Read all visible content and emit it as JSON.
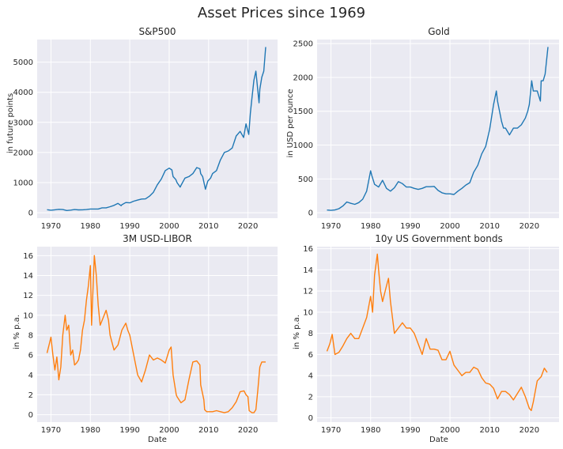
{
  "figure": {
    "title": "Asset Prices since 1969"
  },
  "colors": {
    "blue": "#1f77b4",
    "orange": "#ff7f0e",
    "panel": "#eaeaf2"
  },
  "chart_data": [
    {
      "type": "line",
      "title": "S&P500",
      "xlabel": "",
      "ylabel": "in future points",
      "xlim": [
        1966.5,
        2027.5
      ],
      "ylim": [
        -180,
        5750
      ],
      "xticks": [
        1970,
        1980,
        1990,
        2000,
        2010,
        2020
      ],
      "yticks": [
        0,
        1000,
        2000,
        3000,
        4000,
        5000
      ],
      "grid": true,
      "series": [
        {
          "color": "#1f77b4",
          "x": [
            1969,
            1970,
            1971,
            1972,
            1973,
            1974,
            1975,
            1976,
            1977,
            1978,
            1979,
            1980,
            1981,
            1982,
            1983,
            1984,
            1985,
            1986,
            1987,
            1987.8,
            1988,
            1989,
            1990,
            1991,
            1992,
            1993,
            1994,
            1995,
            1996,
            1997,
            1998,
            1999,
            2000,
            2000.7,
            2001,
            2001.7,
            2002,
            2002.8,
            2003,
            2004,
            2005,
            2006,
            2007,
            2007.8,
            2008,
            2008.5,
            2009.2,
            2009.8,
            2010.5,
            2011,
            2012,
            2013,
            2014,
            2015,
            2016,
            2017,
            2018,
            2018.9,
            2019.5,
            2020.2,
            2020.6,
            2021,
            2021.5,
            2022,
            2022.8,
            2023,
            2023.5,
            2024,
            2024.5
          ],
          "y": [
            100,
            85,
            98,
            115,
            105,
            75,
            88,
            105,
            95,
            98,
            105,
            125,
            125,
            125,
            165,
            165,
            200,
            245,
            310,
            235,
            265,
            340,
            330,
            385,
            420,
            455,
            460,
            550,
            680,
            930,
            1120,
            1400,
            1480,
            1420,
            1200,
            1100,
            1000,
            850,
            910,
            1150,
            1200,
            1300,
            1500,
            1460,
            1300,
            1200,
            780,
            1050,
            1150,
            1300,
            1400,
            1750,
            2000,
            2050,
            2150,
            2550,
            2700,
            2500,
            2950,
            2600,
            3300,
            3800,
            4400,
            4700,
            3650,
            4100,
            4500,
            4700,
            5500
          ]
        }
      ]
    },
    {
      "type": "line",
      "title": "Gold",
      "xlabel": "",
      "ylabel": "in USD per ounce",
      "xlim": [
        1966.5,
        2027.5
      ],
      "ylim": [
        -80,
        2560
      ],
      "xticks": [
        1970,
        1980,
        1990,
        2000,
        2010,
        2020
      ],
      "yticks": [
        0,
        500,
        1000,
        1500,
        2000,
        2500
      ],
      "grid": true,
      "series": [
        {
          "color": "#1f77b4",
          "x": [
            1969,
            1970,
            1971,
            1972,
            1973,
            1974,
            1975,
            1976,
            1977,
            1978,
            1979,
            1980,
            1980.3,
            1981,
            1982,
            1983,
            1984,
            1985,
            1986,
            1987,
            1988,
            1989,
            1990,
            1991,
            1992,
            1993,
            1994,
            1995,
            1996,
            1997,
            1998,
            1999,
            2000,
            2001,
            2002,
            2003,
            2004,
            2005,
            2006,
            2007,
            2008,
            2009,
            2010,
            2011,
            2011.7,
            2012,
            2013,
            2013.5,
            2014,
            2015,
            2016,
            2017,
            2018,
            2019,
            2019.6,
            2020,
            2020.6,
            2021,
            2022,
            2022.8,
            2023,
            2023.5,
            2024,
            2024.7
          ],
          "y": [
            40,
            36,
            42,
            60,
            100,
            160,
            140,
            125,
            150,
            200,
            320,
            620,
            550,
            420,
            380,
            480,
            360,
            320,
            370,
            460,
            430,
            380,
            380,
            360,
            345,
            360,
            385,
            385,
            390,
            330,
            295,
            280,
            280,
            270,
            320,
            360,
            410,
            445,
            600,
            700,
            870,
            980,
            1230,
            1600,
            1800,
            1650,
            1350,
            1250,
            1250,
            1150,
            1250,
            1250,
            1300,
            1400,
            1500,
            1600,
            1950,
            1800,
            1800,
            1650,
            1950,
            1950,
            2050,
            2450
          ]
        }
      ]
    },
    {
      "type": "line",
      "title": "3M USD-LIBOR",
      "xlabel": "Date",
      "ylabel": "in % p.a.",
      "xlim": [
        1966.5,
        2027.5
      ],
      "ylim": [
        -0.75,
        16.9
      ],
      "xticks": [
        1970,
        1980,
        1990,
        2000,
        2010,
        2020
      ],
      "yticks": [
        0,
        2,
        4,
        6,
        8,
        10,
        12,
        14,
        16
      ],
      "grid": true,
      "series": [
        {
          "color": "#ff7f0e",
          "x": [
            1969,
            1969.5,
            1970,
            1970.5,
            1971,
            1971.5,
            1972,
            1972.5,
            1973,
            1973.6,
            1974,
            1974.5,
            1975,
            1975.5,
            1976,
            1976.5,
            1977,
            1977.5,
            1978,
            1978.5,
            1979,
            1979.5,
            1980,
            1980.3,
            1980.6,
            1981,
            1981.5,
            1982,
            1982.5,
            1983,
            1984,
            1984.6,
            1985,
            1986,
            1987,
            1988,
            1989,
            1989.5,
            1990,
            1991,
            1992,
            1993,
            1994,
            1995,
            1996,
            1997,
            1998,
            1999,
            2000,
            2000.5,
            2001,
            2001.8,
            2002,
            2003,
            2004,
            2005,
            2006,
            2007,
            2007.8,
            2008,
            2008.8,
            2009,
            2009.5,
            2010,
            2011,
            2012,
            2013,
            2014,
            2015,
            2016,
            2017,
            2018,
            2019,
            2019.5,
            2020,
            2020.3,
            2021,
            2021.5,
            2022,
            2022.5,
            2023,
            2023.5,
            2024.5
          ],
          "y": [
            6.2,
            7.0,
            7.8,
            6.0,
            4.5,
            5.8,
            3.5,
            4.8,
            8.0,
            10.0,
            8.5,
            9.0,
            6.0,
            6.5,
            5.0,
            5.2,
            5.5,
            6.5,
            8.5,
            9.5,
            11.5,
            13.0,
            15.0,
            9.0,
            12.0,
            16.0,
            14.0,
            11.0,
            9.0,
            9.5,
            10.5,
            9.5,
            8.0,
            6.5,
            7.0,
            8.5,
            9.2,
            8.5,
            8.0,
            6.0,
            4.0,
            3.3,
            4.5,
            6.0,
            5.5,
            5.7,
            5.5,
            5.2,
            6.5,
            6.8,
            4.0,
            2.0,
            1.8,
            1.2,
            1.5,
            3.5,
            5.3,
            5.4,
            5.0,
            3.0,
            1.5,
            0.5,
            0.3,
            0.3,
            0.3,
            0.4,
            0.3,
            0.2,
            0.3,
            0.7,
            1.3,
            2.3,
            2.4,
            2.0,
            1.8,
            0.4,
            0.2,
            0.2,
            0.5,
            2.5,
            4.8,
            5.3,
            5.3
          ]
        }
      ]
    },
    {
      "type": "line",
      "title": "10y US Government bonds",
      "xlabel": "Date",
      "ylabel": "in % p.a.",
      "xlim": [
        1966.5,
        2027.5
      ],
      "ylim": [
        -0.4,
        16.2
      ],
      "xticks": [
        1970,
        1980,
        1990,
        2000,
        2010,
        2020
      ],
      "yticks": [
        0,
        2,
        4,
        6,
        8,
        10,
        12,
        14,
        16
      ],
      "grid": true,
      "series": [
        {
          "color": "#ff7f0e",
          "x": [
            1969,
            1969.7,
            1970.3,
            1971,
            1972,
            1973,
            1974,
            1975,
            1976,
            1977,
            1978,
            1979,
            1980,
            1980.5,
            1981,
            1981.7,
            1982,
            1982.5,
            1983,
            1984,
            1984.5,
            1985,
            1986,
            1987,
            1988,
            1989,
            1990,
            1991,
            1992,
            1993,
            1994,
            1995,
            1996,
            1997,
            1998,
            1999,
            2000,
            2001,
            2002,
            2003,
            2004,
            2005,
            2006,
            2007,
            2008,
            2009,
            2010,
            2011,
            2012,
            2013,
            2014,
            2015,
            2016,
            2017,
            2018,
            2019,
            2020,
            2020.5,
            2021,
            2022,
            2023,
            2023.8,
            2024.5
          ],
          "y": [
            6.3,
            7.0,
            7.9,
            6.0,
            6.2,
            6.8,
            7.5,
            8.0,
            7.5,
            7.5,
            8.5,
            9.5,
            11.5,
            10.0,
            13.5,
            15.5,
            14.0,
            12.0,
            11.0,
            12.5,
            13.2,
            11.0,
            8.0,
            8.5,
            9.0,
            8.5,
            8.5,
            8.0,
            7.0,
            6.0,
            7.5,
            6.5,
            6.5,
            6.4,
            5.5,
            5.5,
            6.3,
            5.0,
            4.5,
            4.0,
            4.3,
            4.3,
            4.8,
            4.6,
            3.8,
            3.3,
            3.2,
            2.8,
            1.8,
            2.5,
            2.5,
            2.2,
            1.7,
            2.3,
            2.9,
            2.0,
            0.9,
            0.7,
            1.5,
            3.5,
            3.9,
            4.7,
            4.3
          ]
        }
      ]
    }
  ]
}
